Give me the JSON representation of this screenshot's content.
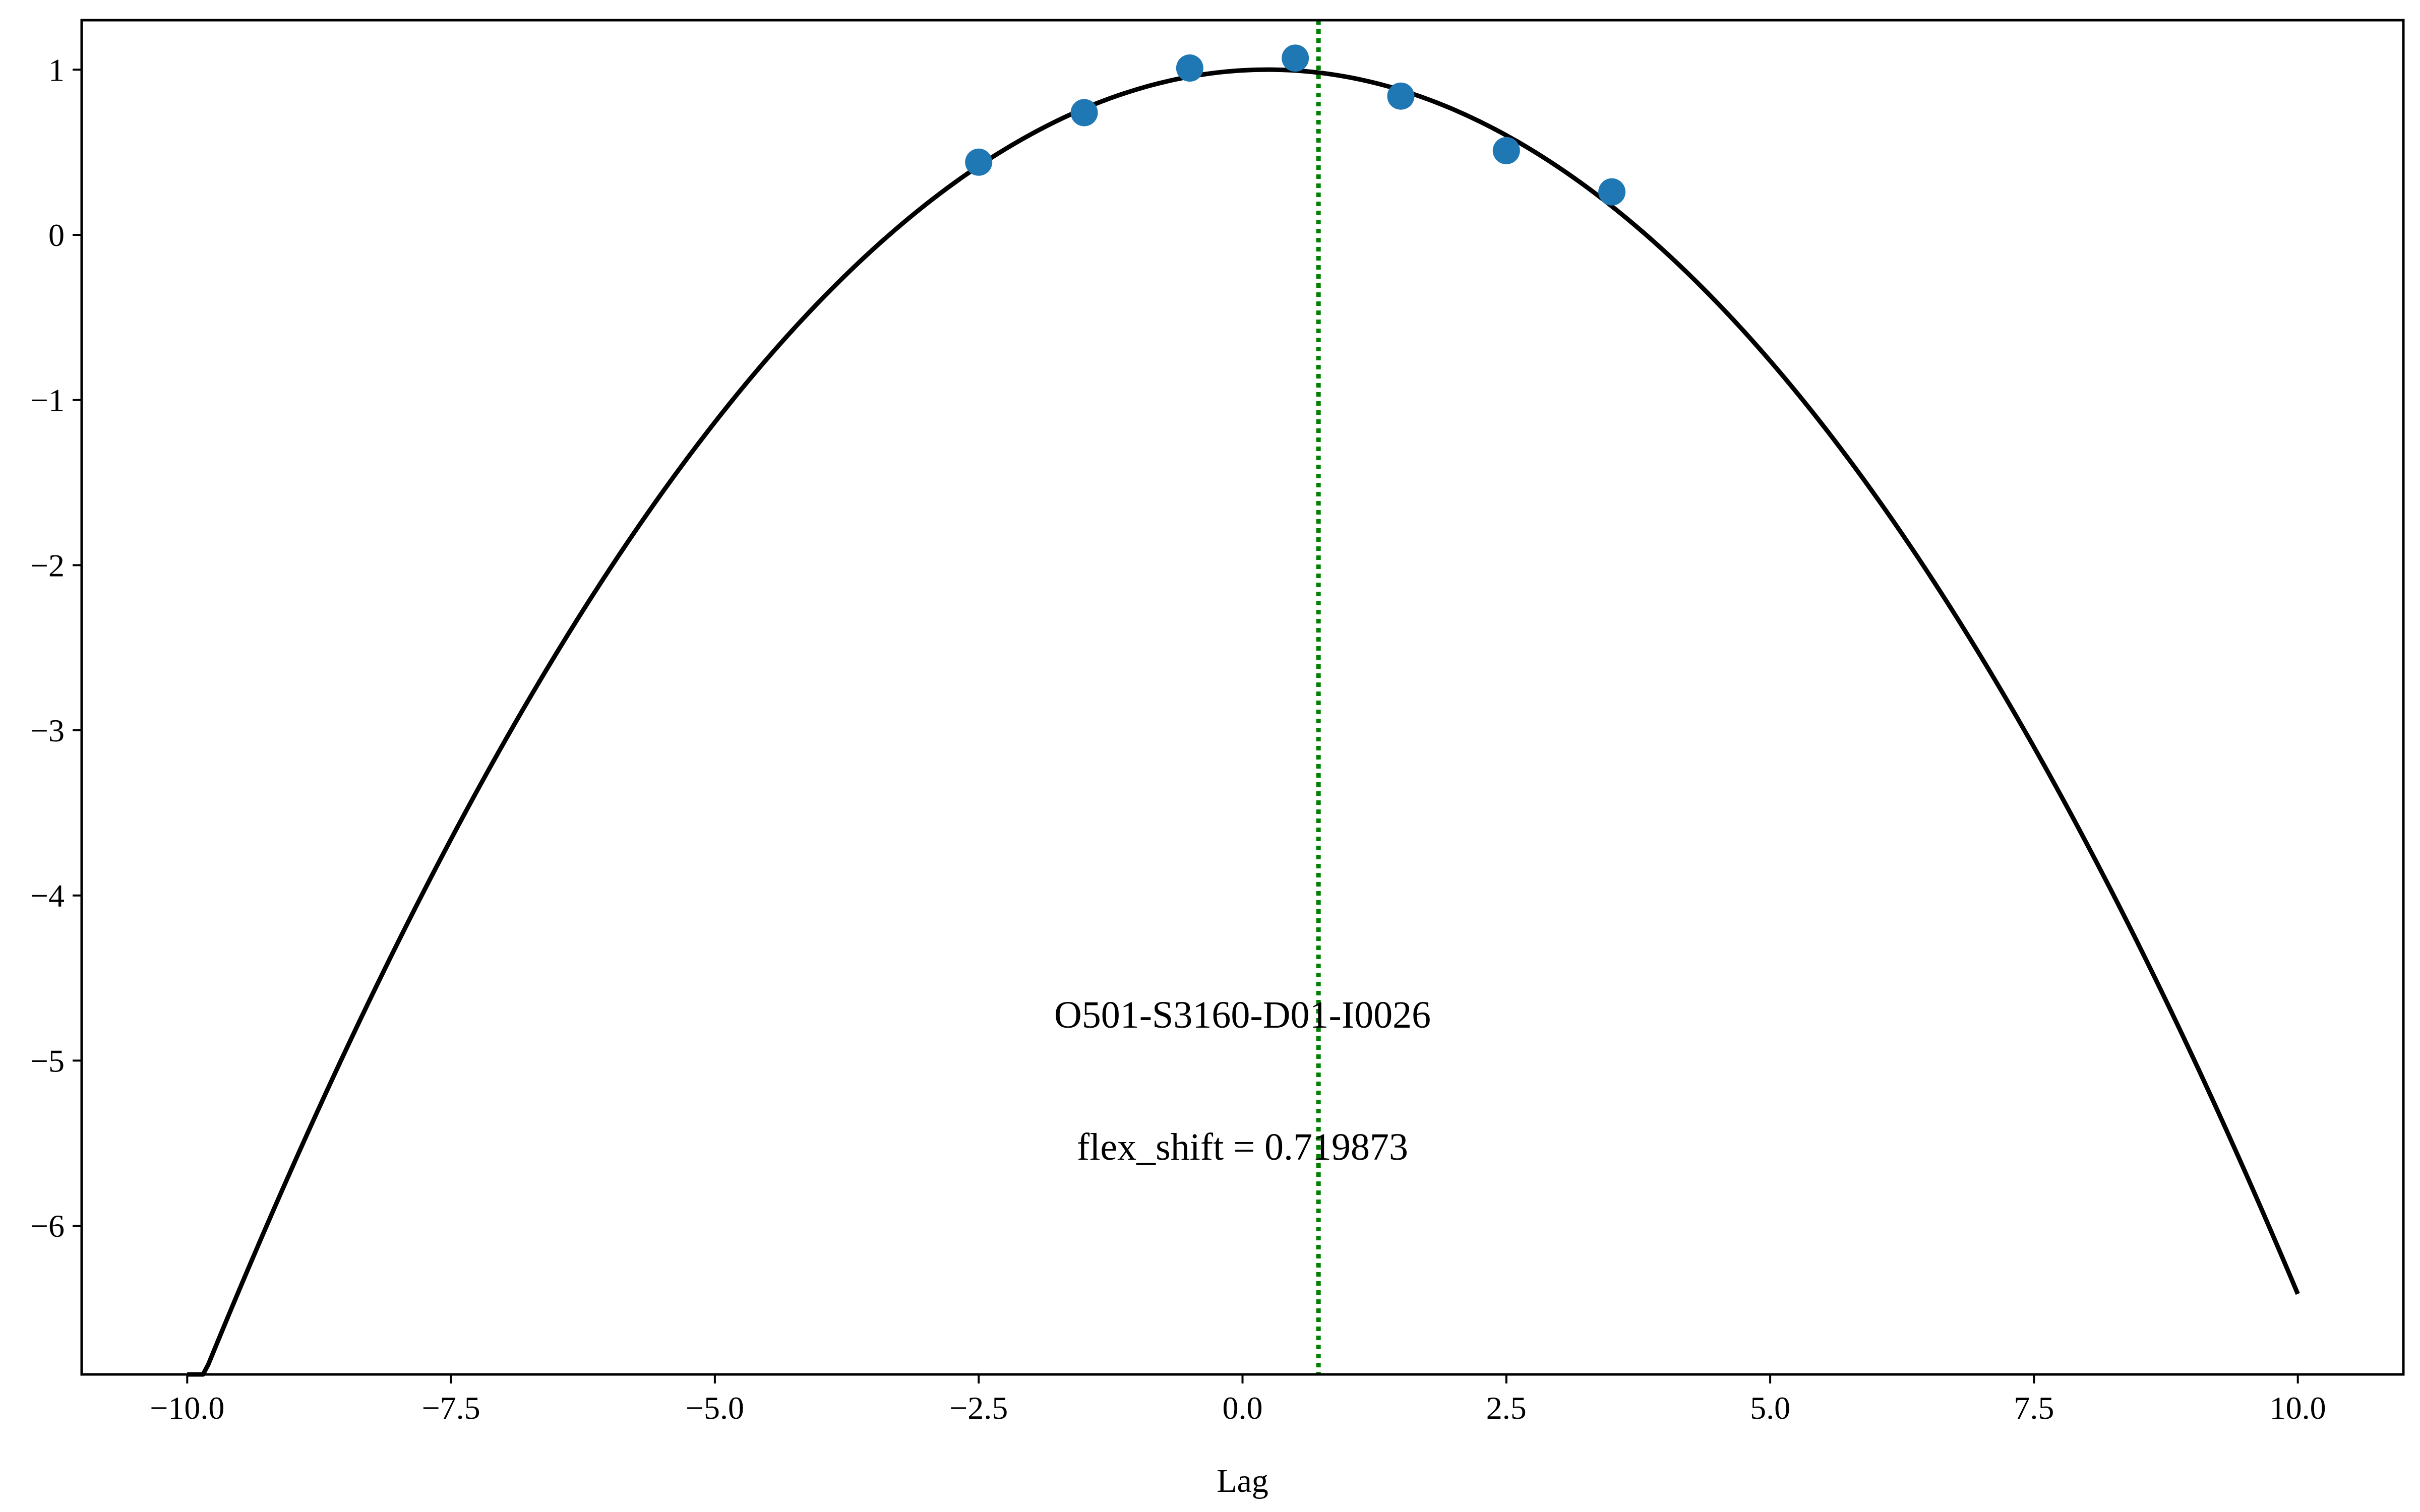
{
  "chart_data": {
    "type": "scatter",
    "title": "",
    "xlabel": "Lag",
    "ylabel": "",
    "xlim": [
      -11.0,
      11.0
    ],
    "ylim": [
      -6.9,
      1.3
    ],
    "xticks": [
      -10.0,
      -7.5,
      -5.0,
      -2.5,
      0.0,
      2.5,
      5.0,
      7.5,
      10.0
    ],
    "xtick_labels": [
      "−10.0",
      "−7.5",
      "−5.0",
      "−2.5",
      "0.0",
      "2.5",
      "5.0",
      "7.5",
      "10.0"
    ],
    "yticks": [
      1,
      0,
      -1,
      -2,
      -3,
      -4,
      -5,
      -6
    ],
    "ytick_labels": [
      "1",
      "0",
      "−1",
      "−2",
      "−3",
      "−4",
      "−5",
      "−6"
    ],
    "grid": false,
    "points": {
      "color": "#1f77b4",
      "x": [
        -2.5,
        -1.5,
        -0.5,
        0.5,
        1.5,
        2.5,
        3.5
      ],
      "y": [
        0.44,
        0.74,
        1.01,
        1.07,
        0.84,
        0.51,
        0.26
      ]
    },
    "fit_curve": {
      "color": "#000000",
      "coefficients": {
        "a": -0.0778,
        "b": 0.0371,
        "c": 0.996
      },
      "x_range": [
        -10.0,
        10.0
      ]
    },
    "vline": {
      "x": 0.719873,
      "color": "#008000",
      "style": "dotted"
    },
    "annotations": [
      {
        "name": "series-id",
        "text": "O501-S3160-D01-I0026",
        "x": 0.0,
        "y": -4.8
      },
      {
        "name": "flex-shift",
        "text": "flex_shift = 0.719873",
        "x": 0.0,
        "y": -5.6
      }
    ]
  }
}
